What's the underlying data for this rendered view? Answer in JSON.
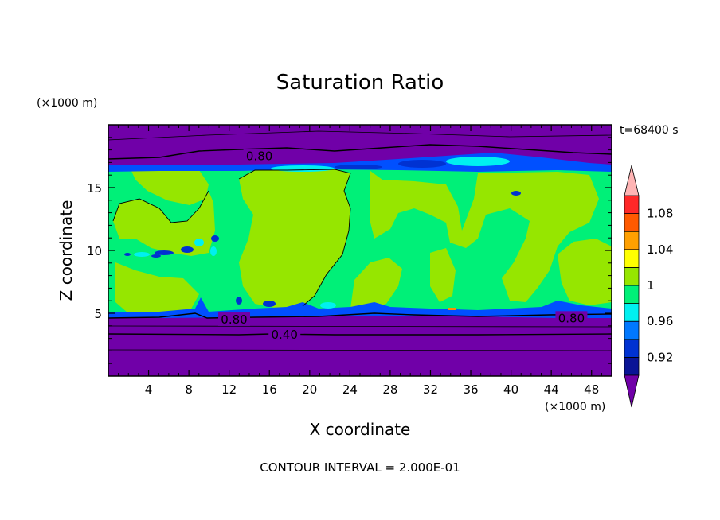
{
  "chart_data": {
    "type": "heatmap",
    "title": "Saturation Ratio",
    "xlabel": "X coordinate",
    "ylabel": "Z coordinate",
    "x_unit": "(×1000 m)",
    "y_unit": "(×1000 m)",
    "time_label": "t=68400 s",
    "footer": "CONTOUR INTERVAL = 2.000E-01",
    "xlim": [
      0,
      50
    ],
    "ylim": [
      0,
      20
    ],
    "x_ticks": [
      4,
      8,
      12,
      16,
      20,
      24,
      28,
      32,
      36,
      40,
      44,
      48
    ],
    "y_ticks": [
      5,
      10,
      15
    ],
    "colorbar": {
      "levels": [
        0.9,
        0.92,
        0.94,
        0.96,
        0.98,
        1.0,
        1.02,
        1.04,
        1.06,
        1.08,
        1.1
      ],
      "tick_labels": [
        "0.92",
        "0.96",
        "1",
        "1.04",
        "1.08"
      ],
      "tick_values": [
        0.92,
        0.96,
        1.0,
        1.04,
        1.08
      ],
      "colors": [
        "#5b1fa8",
        "#0a1496",
        "#0032d2",
        "#0078ff",
        "#00f0f0",
        "#00f078",
        "#96e600",
        "#ffff00",
        "#ffa000",
        "#ff5a00",
        "#ff2828"
      ],
      "under_color": "#7000a8",
      "over_color": "#ffb4b4"
    },
    "regions": {
      "dry_color": "#7000a8",
      "moist_color": "#00f078",
      "super_color": "#96e600",
      "band_color": "#0050ff"
    },
    "contour_labels": [
      {
        "text": "0.80",
        "x": 15.0,
        "z": 17.5
      },
      {
        "text": "0.80",
        "x": 12.5,
        "z": 4.5
      },
      {
        "text": "0.80",
        "x": 46.0,
        "z": 4.6
      },
      {
        "text": "0.40",
        "x": 17.5,
        "z": 3.3
      }
    ]
  }
}
